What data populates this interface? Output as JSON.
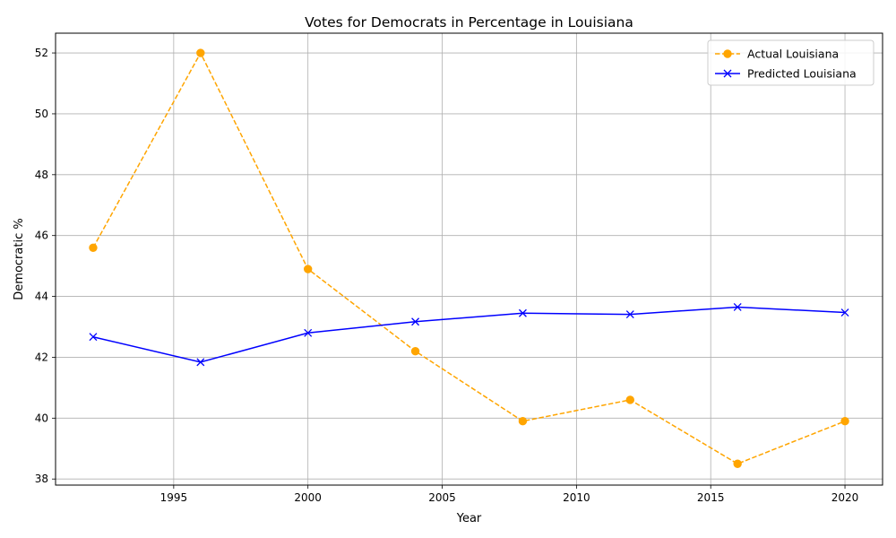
{
  "chart_data": {
    "type": "line",
    "title": "Votes for Democrats in Percentage in Louisiana",
    "xlabel": "Year",
    "ylabel": "Democratic %",
    "x": [
      1992,
      1996,
      2000,
      2004,
      2008,
      2012,
      2016,
      2020
    ],
    "xlim": [
      1990.6,
      2021.4
    ],
    "ylim": [
      37.8,
      52.65
    ],
    "xticks": [
      1995,
      2000,
      2005,
      2010,
      2015,
      2020
    ],
    "yticks": [
      38,
      40,
      42,
      44,
      46,
      48,
      50,
      52
    ],
    "grid": true,
    "legend_position": "top-right",
    "series": [
      {
        "name": "Actual Louisiana",
        "color": "#ffa500",
        "line_style": "dashed",
        "marker": "circle",
        "values": [
          45.6,
          52.0,
          44.9,
          42.2,
          39.9,
          40.6,
          38.5,
          39.9
        ]
      },
      {
        "name": "Predicted Louisiana",
        "color": "#0000ff",
        "line_style": "solid",
        "marker": "x",
        "values": [
          42.67,
          41.84,
          42.8,
          43.17,
          43.45,
          43.41,
          43.65,
          43.47
        ]
      }
    ]
  }
}
